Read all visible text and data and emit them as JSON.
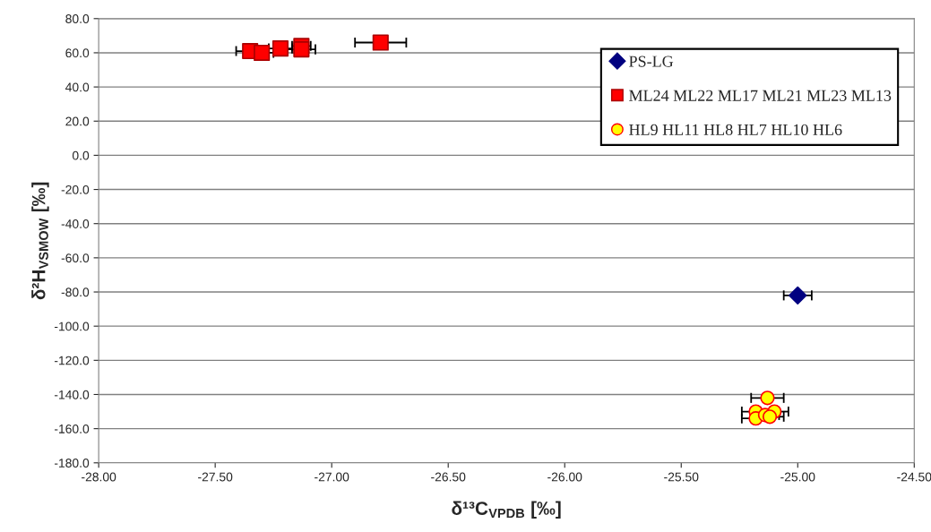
{
  "chart_data": {
    "type": "scatter",
    "xlabel": "δ¹³C$_{VPDB}$ [‰]",
    "ylabel": "δ²H$_{VSMOW}$ [‰]",
    "xlim": [
      -28,
      -24.5
    ],
    "ylim": [
      -180,
      80
    ],
    "xticks": [
      {
        "value": -28,
        "label": "-28.00"
      },
      {
        "value": -27.5,
        "label": "-27.50"
      },
      {
        "value": -27,
        "label": "-27.00"
      },
      {
        "value": -26.5,
        "label": "-26.50"
      },
      {
        "value": -26,
        "label": "-26.00"
      },
      {
        "value": -25.5,
        "label": "-25.50"
      },
      {
        "value": -25,
        "label": "-25.00"
      },
      {
        "value": -24.5,
        "label": "-24.50"
      }
    ],
    "yticks": [
      {
        "value": 80,
        "label": "80.0"
      },
      {
        "value": 60,
        "label": "60.0"
      },
      {
        "value": 40,
        "label": "40.0"
      },
      {
        "value": 20,
        "label": "20.0"
      },
      {
        "value": 0,
        "label": "0.0"
      },
      {
        "value": -20,
        "label": "-20.0"
      },
      {
        "value": -40,
        "label": "-40.0"
      },
      {
        "value": -60,
        "label": "-60.0"
      },
      {
        "value": -80,
        "label": "-80.0"
      },
      {
        "value": -100,
        "label": "-100.0"
      },
      {
        "value": -120,
        "label": "-120.0"
      },
      {
        "value": -140,
        "label": "-140.0"
      },
      {
        "value": -160,
        "label": "-160.0"
      },
      {
        "value": -180,
        "label": "-180.0"
      }
    ],
    "grid": "y",
    "legend": "top right",
    "series": [
      {
        "name": "PS-LG",
        "color": "#000080",
        "marker": "diamond",
        "x": [
          -25.0
        ],
        "values": [
          -82
        ],
        "xerrors": [
          0.06
        ]
      },
      {
        "name": "ML24 ML22 ML17 ML21 ML23 ML13",
        "color": "#ff0000",
        "marker": "square",
        "x": [
          -27.35,
          -27.3,
          -27.22,
          -27.13,
          -27.13,
          -26.79
        ],
        "values": [
          61,
          60,
          62.5,
          64,
          62,
          66
        ],
        "xerrors": [
          0.06,
          0.05,
          0.05,
          0.04,
          0.06,
          0.11
        ]
      },
      {
        "name": "HL9 HL11 HL8 HL7 HL10 HL6",
        "color": "#ffff00",
        "marker": "circle",
        "x": [
          -25.13,
          -25.18,
          -25.18,
          -25.14,
          -25.1,
          -25.12
        ],
        "values": [
          -142,
          -150,
          -154,
          -152,
          -150,
          -153
        ],
        "xerrors": [
          0.07,
          0.06,
          0.06,
          0.06,
          0.06,
          0.06
        ]
      }
    ]
  }
}
